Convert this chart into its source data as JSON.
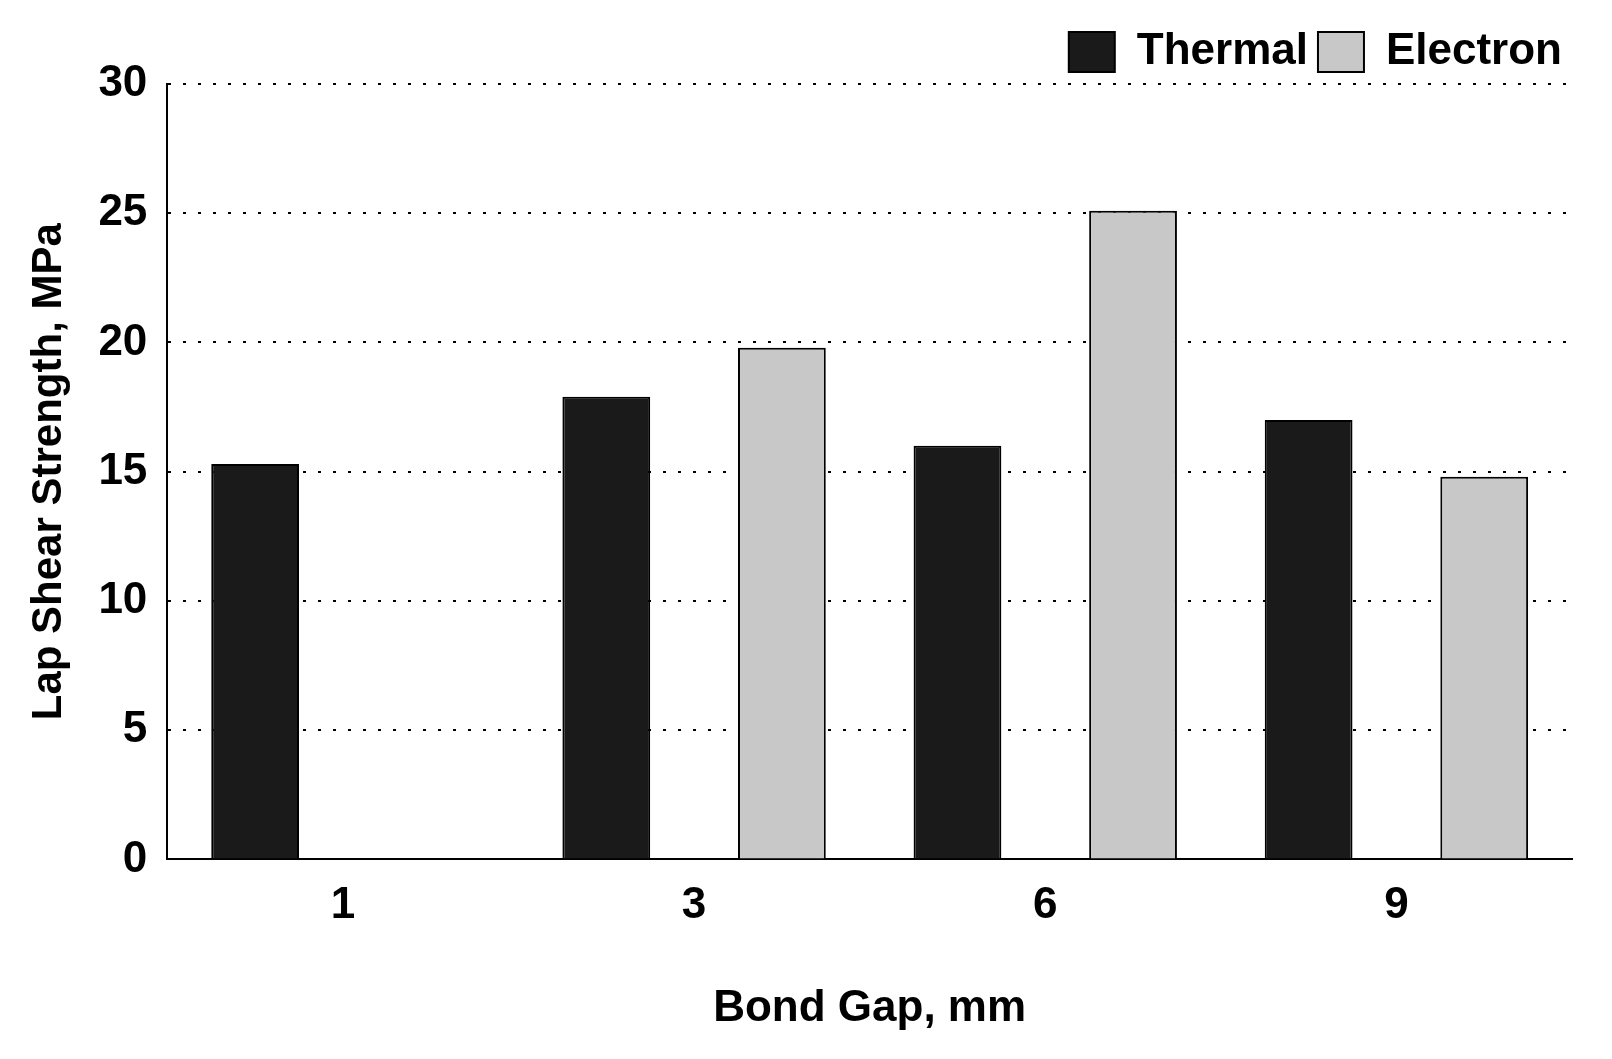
{
  "chart_data": {
    "type": "bar",
    "xlabel": "Bond Gap, mm",
    "ylabel": "Lap Shear Strength, MPa",
    "categories": [
      "1",
      "3",
      "6",
      "9"
    ],
    "series": [
      {
        "name": "Thermal",
        "color": "#1a1a1a",
        "values": [
          15.3,
          17.9,
          16.0,
          17.0
        ]
      },
      {
        "name": "Electron",
        "color": "#c8c8c8",
        "values": [
          null,
          19.8,
          25.1,
          14.8
        ]
      }
    ],
    "ylim": [
      0,
      30
    ],
    "yticks": [
      0,
      5,
      10,
      15,
      20,
      25,
      30
    ],
    "grid": "y",
    "legend": "top right"
  }
}
